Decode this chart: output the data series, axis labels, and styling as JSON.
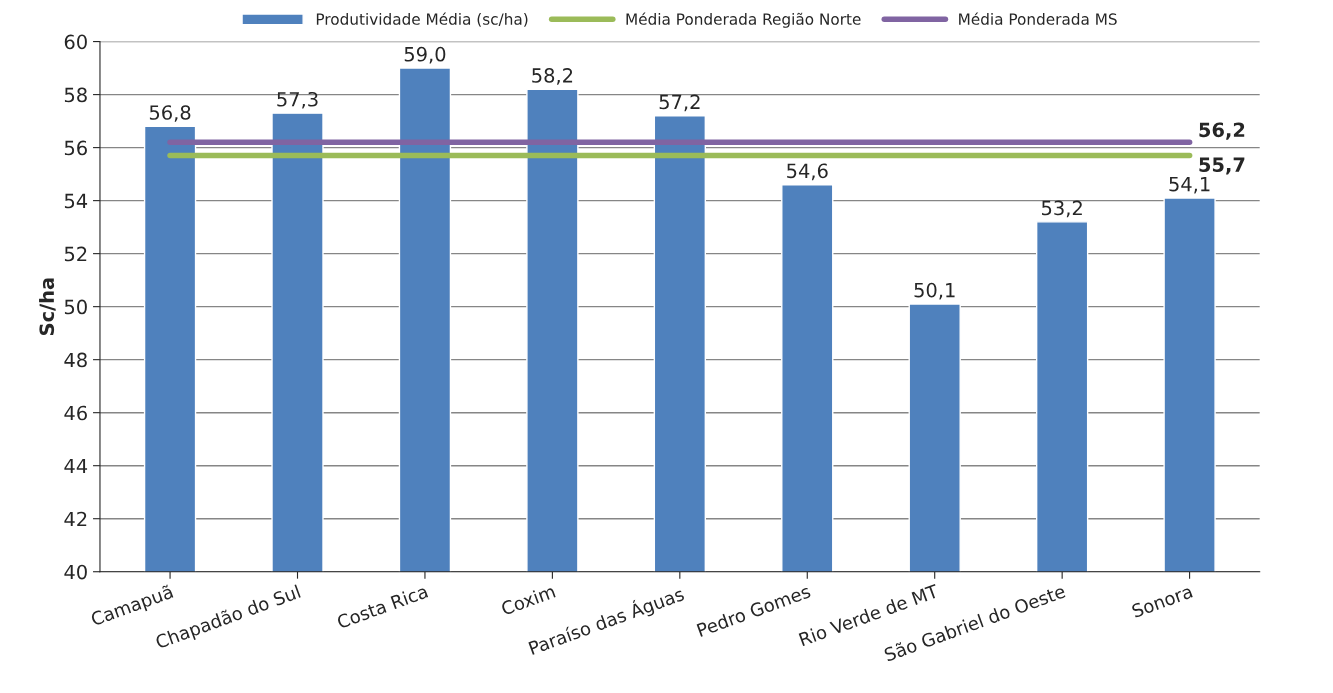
{
  "chart_data": {
    "type": "bar",
    "ylabel": "Sc/ha",
    "categories": [
      "Camapuã",
      "Chapadão do Sul",
      "Costa Rica",
      "Coxim",
      "Paraíso das Águas",
      "Pedro Gomes",
      "Rio Verde de MT",
      "São Gabriel do Oeste",
      "Sonora"
    ],
    "series": [
      {
        "name": "Produtividade Média (sc/ha)",
        "color": "#4f81bd",
        "values": [
          56.8,
          57.3,
          59.0,
          58.2,
          57.2,
          54.6,
          50.1,
          53.2,
          54.1
        ],
        "value_labels": [
          "56,8",
          "57,3",
          "59,0",
          "58,2",
          "57,2",
          "54,6",
          "50,1",
          "53,2",
          "54,1"
        ]
      },
      {
        "name": "Média Ponderada Região Norte",
        "type": "line",
        "color": "#9bbb59",
        "values": [
          55.7,
          55.7,
          55.7,
          55.7,
          55.7,
          55.7,
          55.7,
          55.7,
          55.7
        ],
        "value_labels": [
          null,
          null,
          null,
          null,
          null,
          null,
          null,
          null,
          "55,7"
        ]
      },
      {
        "name": "Média Ponderada MS",
        "type": "line",
        "color": "#8064a2",
        "values": [
          56.2,
          56.2,
          56.2,
          56.2,
          56.2,
          56.2,
          56.2,
          56.2,
          56.2
        ],
        "value_labels": [
          null,
          null,
          null,
          null,
          null,
          null,
          null,
          null,
          "56,2"
        ]
      }
    ],
    "ylim": [
      40,
      60
    ],
    "yticks": [
      40,
      42,
      44,
      46,
      48,
      50,
      52,
      54,
      56,
      58,
      60
    ],
    "grid": "y",
    "legend": "top",
    "marker": "none"
  }
}
